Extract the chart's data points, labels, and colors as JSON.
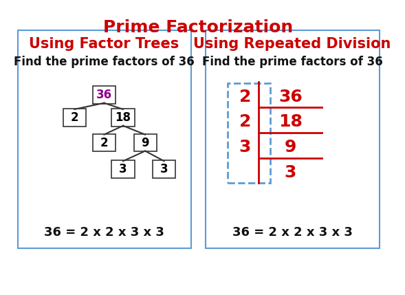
{
  "title": "Prime Factorization",
  "title_color": "#cc0000",
  "title_fontsize": 18,
  "left_heading": "Using Factor Trees",
  "right_heading": "Using Repeated Division",
  "heading_color": "#cc0000",
  "heading_fontsize": 15,
  "subheading": "Find the prime factors of 36",
  "subheading_fontsize": 12,
  "equation": "36 = 2 x 2 x 3 x 3",
  "equation_fontsize": 13,
  "box_border_color": "#5b9bd5",
  "box_bg": "#ffffff",
  "node_border": "#333333",
  "tree_36_color": "#8B008B",
  "tree_nums_color": "#000000",
  "division_nums_color": "#cc0000",
  "dashed_box_color": "#5b9bd5",
  "bg_color": "#ffffff"
}
